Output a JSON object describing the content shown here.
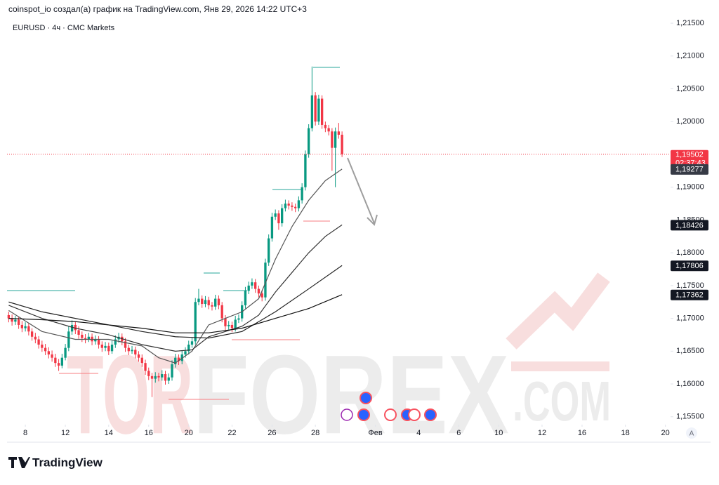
{
  "header": "coinspot_io создал(а) график на TradingView.com, Янв 29, 2026 14:22 UTC+3",
  "footer_logo": "TradingView",
  "auto_button": "A",
  "chart_data": {
    "type": "candlestick",
    "title": "EURUSD · 4ч · CMC Markets",
    "watermark": {
      "accent": "TOR",
      "main": "FOREX",
      "suffix": ".COM"
    },
    "up_color": "#089981",
    "down_color": "#f23645",
    "ylim": [
      1.1538,
      1.2164
    ],
    "yticks": [
      {
        "value": 1.155,
        "label": "1,15500"
      },
      {
        "value": 1.16,
        "label": "1,16000"
      },
      {
        "value": 1.165,
        "label": "1,16500"
      },
      {
        "value": 1.17,
        "label": "1,17000"
      },
      {
        "value": 1.175,
        "label": "1,17500"
      },
      {
        "value": 1.18,
        "label": "1,18000"
      },
      {
        "value": 1.185,
        "label": "1,18500"
      },
      {
        "value": 1.19,
        "label": "1,19000"
      },
      {
        "value": 1.195,
        "label": "1,19500"
      },
      {
        "value": 1.2,
        "label": "1,20000"
      },
      {
        "value": 1.205,
        "label": "1,20500"
      },
      {
        "value": 1.21,
        "label": "1,21000"
      },
      {
        "value": 1.215,
        "label": "1,21500"
      }
    ],
    "xlim": [
      -0.5,
      197.5
    ],
    "xticks": [
      {
        "value": 5,
        "label": "8"
      },
      {
        "value": 17,
        "label": "12"
      },
      {
        "value": 30,
        "label": "14"
      },
      {
        "value": 42,
        "label": "16"
      },
      {
        "value": 54,
        "label": "20"
      },
      {
        "value": 67,
        "label": "22"
      },
      {
        "value": 79,
        "label": "26"
      },
      {
        "value": 92,
        "label": "28"
      },
      {
        "value": 110,
        "label": "Фев"
      },
      {
        "value": 123,
        "label": "4"
      },
      {
        "value": 135,
        "label": "6"
      },
      {
        "value": 147,
        "label": "10"
      },
      {
        "value": 160,
        "label": "12"
      },
      {
        "value": 172,
        "label": "16"
      },
      {
        "value": 185,
        "label": "18"
      },
      {
        "value": 197,
        "label": "20"
      }
    ],
    "candles": [
      [
        1.1705,
        1.171,
        1.1694,
        1.17
      ],
      [
        1.17,
        1.1706,
        1.1689,
        1.1695
      ],
      [
        1.1695,
        1.1704,
        1.169,
        1.1698
      ],
      [
        1.1698,
        1.1703,
        1.1684,
        1.169
      ],
      [
        1.169,
        1.1696,
        1.1679,
        1.1685
      ],
      [
        1.1685,
        1.1694,
        1.168,
        1.1688
      ],
      [
        1.1688,
        1.1693,
        1.1674,
        1.168
      ],
      [
        1.168,
        1.1685,
        1.1666,
        1.1672
      ],
      [
        1.1672,
        1.1678,
        1.1662,
        1.1668
      ],
      [
        1.1668,
        1.1673,
        1.1654,
        1.166
      ],
      [
        1.166,
        1.1666,
        1.1649,
        1.1655
      ],
      [
        1.1655,
        1.1661,
        1.1644,
        1.165
      ],
      [
        1.165,
        1.1656,
        1.1639,
        1.1645
      ],
      [
        1.1645,
        1.1651,
        1.1634,
        1.164
      ],
      [
        1.164,
        1.1646,
        1.1626,
        1.1632
      ],
      [
        1.1632,
        1.1638,
        1.162,
        1.1628
      ],
      [
        1.1628,
        1.1646,
        1.1624,
        1.164
      ],
      [
        1.164,
        1.1661,
        1.1636,
        1.1655
      ],
      [
        1.1655,
        1.1688,
        1.165,
        1.168
      ],
      [
        1.168,
        1.1697,
        1.1675,
        1.169
      ],
      [
        1.169,
        1.1695,
        1.1676,
        1.1682
      ],
      [
        1.1682,
        1.1688,
        1.1669,
        1.1675
      ],
      [
        1.1675,
        1.168,
        1.1664,
        1.167
      ],
      [
        1.167,
        1.1676,
        1.1662,
        1.1668
      ],
      [
        1.1668,
        1.1678,
        1.1664,
        1.1672
      ],
      [
        1.1672,
        1.1677,
        1.1659,
        1.1665
      ],
      [
        1.1665,
        1.1674,
        1.166,
        1.1668
      ],
      [
        1.1668,
        1.1673,
        1.1654,
        1.166
      ],
      [
        1.166,
        1.1665,
        1.1649,
        1.1655
      ],
      [
        1.1655,
        1.1664,
        1.165,
        1.1658
      ],
      [
        1.1658,
        1.1663,
        1.1644,
        1.165
      ],
      [
        1.165,
        1.1666,
        1.1646,
        1.166
      ],
      [
        1.166,
        1.1674,
        1.1655,
        1.1668
      ],
      [
        1.1668,
        1.1678,
        1.1663,
        1.1672
      ],
      [
        1.1672,
        1.1677,
        1.1659,
        1.1665
      ],
      [
        1.1665,
        1.167,
        1.1649,
        1.1655
      ],
      [
        1.1655,
        1.166,
        1.1644,
        1.165
      ],
      [
        1.165,
        1.1658,
        1.1646,
        1.1652
      ],
      [
        1.1652,
        1.1657,
        1.1639,
        1.1645
      ],
      [
        1.1645,
        1.165,
        1.1634,
        1.164
      ],
      [
        1.164,
        1.1645,
        1.1626,
        1.1632
      ],
      [
        1.1632,
        1.1637,
        1.1614,
        1.162
      ],
      [
        1.162,
        1.1625,
        1.1606,
        1.1612
      ],
      [
        1.1612,
        1.1617,
        1.158,
        1.1608
      ],
      [
        1.1608,
        1.1618,
        1.1602,
        1.1612
      ],
      [
        1.1612,
        1.1617,
        1.1604,
        1.161
      ],
      [
        1.161,
        1.1621,
        1.1605,
        1.1615
      ],
      [
        1.1615,
        1.162,
        1.1599,
        1.1605
      ],
      [
        1.1605,
        1.1616,
        1.16,
        1.161
      ],
      [
        1.161,
        1.1636,
        1.1605,
        1.163
      ],
      [
        1.163,
        1.1646,
        1.1625,
        1.164
      ],
      [
        1.164,
        1.1645,
        1.1629,
        1.1635
      ],
      [
        1.1635,
        1.1651,
        1.163,
        1.1645
      ],
      [
        1.1645,
        1.1656,
        1.164,
        1.165
      ],
      [
        1.165,
        1.1666,
        1.1645,
        1.166
      ],
      [
        1.166,
        1.1671,
        1.1655,
        1.1665
      ],
      [
        1.1665,
        1.1731,
        1.166,
        1.1725
      ],
      [
        1.1725,
        1.1745,
        1.172,
        1.173
      ],
      [
        1.173,
        1.1735,
        1.1716,
        1.1722
      ],
      [
        1.1722,
        1.1734,
        1.1717,
        1.1728
      ],
      [
        1.1728,
        1.1733,
        1.1714,
        1.172
      ],
      [
        1.172,
        1.1725,
        1.1712,
        1.1718
      ],
      [
        1.1718,
        1.1736,
        1.1713,
        1.173
      ],
      [
        1.173,
        1.1735,
        1.1714,
        1.172
      ],
      [
        1.172,
        1.1725,
        1.1694,
        1.17
      ],
      [
        1.17,
        1.1705,
        1.1682,
        1.1688
      ],
      [
        1.1688,
        1.1696,
        1.1683,
        1.169
      ],
      [
        1.169,
        1.1695,
        1.1679,
        1.1685
      ],
      [
        1.1685,
        1.1704,
        1.168,
        1.1698
      ],
      [
        1.1698,
        1.1706,
        1.1693,
        1.17
      ],
      [
        1.17,
        1.1726,
        1.1695,
        1.172
      ],
      [
        1.172,
        1.1748,
        1.1715,
        1.1742
      ],
      [
        1.1742,
        1.1756,
        1.1737,
        1.175
      ],
      [
        1.175,
        1.1761,
        1.1745,
        1.1755
      ],
      [
        1.1755,
        1.176,
        1.1739,
        1.1745
      ],
      [
        1.1745,
        1.175,
        1.1732,
        1.1738
      ],
      [
        1.1738,
        1.1743,
        1.1726,
        1.1732
      ],
      [
        1.1732,
        1.1791,
        1.1727,
        1.1785
      ],
      [
        1.1785,
        1.1828,
        1.178,
        1.1822
      ],
      [
        1.1822,
        1.1861,
        1.1817,
        1.1855
      ],
      [
        1.1855,
        1.1866,
        1.185,
        1.186
      ],
      [
        1.186,
        1.1865,
        1.1835,
        1.1845
      ],
      [
        1.1845,
        1.1874,
        1.184,
        1.1868
      ],
      [
        1.1868,
        1.1881,
        1.1863,
        1.1875
      ],
      [
        1.1875,
        1.188,
        1.1866,
        1.1872
      ],
      [
        1.1872,
        1.1877,
        1.1864,
        1.187
      ],
      [
        1.187,
        1.1875,
        1.1862,
        1.1868
      ],
      [
        1.1868,
        1.1886,
        1.1863,
        1.188
      ],
      [
        1.188,
        1.1906,
        1.1875,
        1.19
      ],
      [
        1.19,
        1.1956,
        1.1895,
        1.195
      ],
      [
        1.195,
        1.1996,
        1.1945,
        1.199
      ],
      [
        1.199,
        1.2084,
        1.1985,
        1.204
      ],
      [
        1.204,
        1.2045,
        1.1994,
        1.2
      ],
      [
        1.2,
        1.2041,
        1.1995,
        1.2035
      ],
      [
        1.2035,
        1.204,
        1.1989,
        1.1995
      ],
      [
        1.1995,
        1.2,
        1.1984,
        1.199
      ],
      [
        1.199,
        1.1995,
        1.1979,
        1.1985
      ],
      [
        1.1985,
        1.199,
        1.1925,
        1.196
      ],
      [
        1.196,
        1.1991,
        1.19,
        1.1985
      ],
      [
        1.1985,
        1.1998,
        1.1974,
        1.198
      ],
      [
        1.198,
        1.1985,
        1.1946,
        1.19502
      ]
    ],
    "series": [
      {
        "color": "#555555",
        "x": [
          0,
          10,
          20,
          30,
          40,
          45,
          50,
          55,
          60,
          65,
          70,
          75,
          80,
          85,
          90,
          95,
          100
        ],
        "values": [
          1.1712,
          1.168,
          1.1668,
          1.1668,
          1.1658,
          1.164,
          1.1632,
          1.165,
          1.169,
          1.17,
          1.171,
          1.173,
          1.179,
          1.184,
          1.188,
          1.191,
          1.19277
        ]
      },
      {
        "color": "#333333",
        "x": [
          0,
          10,
          20,
          30,
          40,
          50,
          55,
          60,
          65,
          70,
          75,
          80,
          85,
          90,
          95,
          100
        ],
        "values": [
          1.172,
          1.17,
          1.1685,
          1.1675,
          1.166,
          1.165,
          1.1652,
          1.1672,
          1.168,
          1.1688,
          1.1705,
          1.174,
          1.177,
          1.18,
          1.1825,
          1.18426
        ]
      },
      {
        "color": "#222222",
        "x": [
          0,
          10,
          20,
          30,
          40,
          50,
          60,
          70,
          80,
          90,
          100
        ],
        "values": [
          1.1725,
          1.171,
          1.17,
          1.169,
          1.168,
          1.1672,
          1.167,
          1.168,
          1.171,
          1.1745,
          1.17806
        ]
      },
      {
        "color": "#111111",
        "x": [
          0,
          10,
          20,
          30,
          40,
          50,
          60,
          70,
          80,
          90,
          100
        ],
        "values": [
          1.17,
          1.1698,
          1.1695,
          1.169,
          1.1685,
          1.1678,
          1.1678,
          1.1685,
          1.17,
          1.1715,
          1.17362
        ]
      }
    ],
    "current_price": {
      "value": 1.19502,
      "label": "1,19502",
      "countdown": "02:37:43",
      "color": "#f23645"
    },
    "price_labels": [
      {
        "value": 1.19277,
        "label": "1,19277",
        "color": "#363a45"
      },
      {
        "value": 1.18426,
        "label": "1,18426",
        "color": "#131722"
      },
      {
        "value": 1.17806,
        "label": "1,17806",
        "color": "#131722"
      },
      {
        "value": 1.17362,
        "label": "1,17362",
        "color": "#131722"
      }
    ]
  }
}
